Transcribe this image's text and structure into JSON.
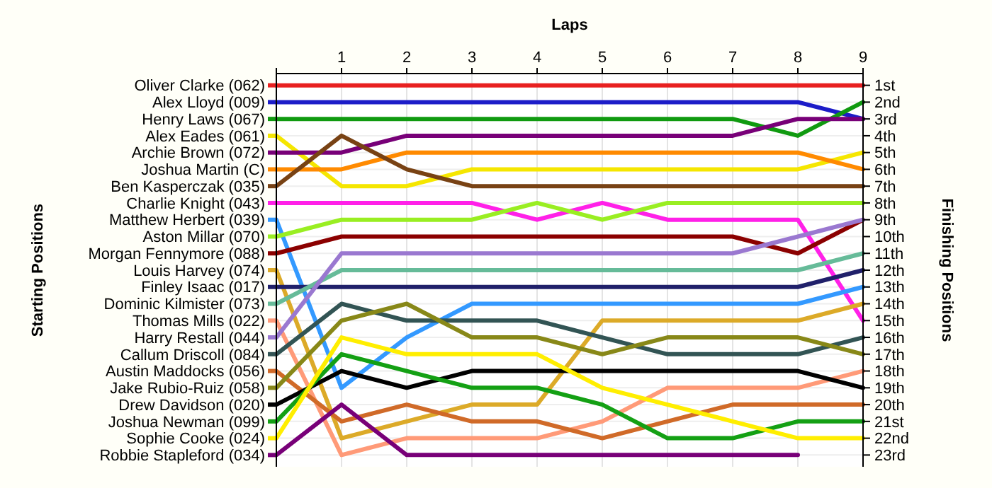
{
  "chart_data": {
    "type": "line",
    "xlabel": "Laps",
    "ylabel": "Finishing Positions",
    "x": [
      0,
      1,
      2,
      3,
      4,
      5,
      6,
      7,
      8,
      9
    ],
    "xlim": [
      0,
      9
    ],
    "xticks": [
      {
        "value": 0,
        "label": null
      },
      1,
      2,
      3,
      4,
      5,
      6,
      7,
      8,
      9
    ],
    "ylim": [
      23.7,
      0.3
    ],
    "yticks": [
      {
        "value": 1,
        "label": "1st"
      },
      {
        "value": 2,
        "label": "2nd"
      },
      {
        "value": 3,
        "label": "3rd"
      },
      {
        "value": 4,
        "label": "4th"
      },
      {
        "value": 5,
        "label": "5th"
      },
      {
        "value": 6,
        "label": "6th"
      },
      {
        "value": 7,
        "label": "7th"
      },
      {
        "value": 8,
        "label": "8th"
      },
      {
        "value": 9,
        "label": "9th"
      },
      {
        "value": 10,
        "label": "10th"
      },
      {
        "value": 11,
        "label": "11th"
      },
      {
        "value": 12,
        "label": "12th"
      },
      {
        "value": 13,
        "label": "13th"
      },
      {
        "value": 14,
        "label": "14th"
      },
      {
        "value": 15,
        "label": "15th"
      },
      {
        "value": 16,
        "label": "16th"
      },
      {
        "value": 17,
        "label": "17th"
      },
      {
        "value": 18,
        "label": "18th"
      },
      {
        "value": 19,
        "label": "19th"
      },
      {
        "value": 20,
        "label": "20th"
      },
      {
        "value": 21,
        "label": "21st"
      },
      {
        "value": 22,
        "label": "22nd"
      },
      {
        "value": 23,
        "label": "23rd"
      }
    ],
    "annotations": [
      "Starting Positions"
    ],
    "grid": true,
    "marker": "none",
    "line_style": "solid",
    "legend": "left",
    "series": [
      {
        "name": "Oliver Clarke (062)",
        "color": "#e82020",
        "values": [
          1,
          1,
          1,
          1,
          1,
          1,
          1,
          1,
          1,
          1
        ]
      },
      {
        "name": "Alex Lloyd (009)",
        "color": "#1c1cc8",
        "values": [
          2,
          2,
          2,
          2,
          2,
          2,
          2,
          2,
          2,
          3
        ]
      },
      {
        "name": "Henry Laws (067)",
        "color": "#109a10",
        "values": [
          3,
          3,
          3,
          3,
          3,
          3,
          3,
          3,
          4,
          2
        ]
      },
      {
        "name": "Alex Eades (061)",
        "color": "#f5e600",
        "values": [
          4,
          7,
          7,
          6,
          6,
          6,
          6,
          6,
          6,
          5
        ]
      },
      {
        "name": "Archie Brown (072)",
        "color": "#780078",
        "values": [
          5,
          5,
          4,
          4,
          4,
          4,
          4,
          4,
          3,
          3
        ]
      },
      {
        "name": "Joshua Martin (C)",
        "color": "#ff8a00",
        "values": [
          6,
          6,
          5,
          5,
          5,
          5,
          5,
          5,
          5,
          6
        ]
      },
      {
        "name": "Ben Kasperczak (035)",
        "color": "#784214",
        "values": [
          7,
          4,
          6,
          7,
          7,
          7,
          7,
          7,
          7,
          7
        ]
      },
      {
        "name": "Charlie Knight (043)",
        "color": "#ff20e8",
        "values": [
          8,
          8,
          8,
          8,
          9,
          8,
          9,
          9,
          9,
          15
        ]
      },
      {
        "name": "Matthew Herbert (039)",
        "color": "#3399ff",
        "values": [
          9,
          19,
          16,
          14,
          14,
          14,
          14,
          14,
          14,
          13
        ]
      },
      {
        "name": "Aston Millar (070)",
        "color": "#99ee22",
        "values": [
          10,
          9,
          9,
          9,
          8,
          9,
          8,
          8,
          8,
          8
        ]
      },
      {
        "name": "Morgan Fennymore (088)",
        "color": "#8b0000",
        "values": [
          11,
          10,
          10,
          10,
          10,
          10,
          10,
          10,
          11,
          9
        ]
      },
      {
        "name": "Louis Harvey (074)",
        "color": "#dcaa28",
        "values": [
          12,
          22,
          21,
          20,
          20,
          15,
          15,
          15,
          15,
          14
        ]
      },
      {
        "name": "Finley Isaac (017)",
        "color": "#20206a",
        "values": [
          13,
          13,
          13,
          13,
          13,
          13,
          13,
          13,
          13,
          12
        ]
      },
      {
        "name": "Dominic Kilmister (073)",
        "color": "#66bb99",
        "values": [
          14,
          12,
          12,
          12,
          12,
          12,
          12,
          12,
          12,
          11
        ]
      },
      {
        "name": "Thomas Mills (022)",
        "color": "#ff9a78",
        "values": [
          15,
          23,
          22,
          22,
          22,
          21,
          19,
          19,
          19,
          18
        ]
      },
      {
        "name": "Harry Restall (044)",
        "color": "#9a78d0",
        "values": [
          16,
          11,
          11,
          11,
          11,
          11,
          11,
          11,
          10,
          9
        ]
      },
      {
        "name": "Callum Driscoll (084)",
        "color": "#325454",
        "values": [
          17,
          14,
          15,
          15,
          15,
          16,
          17,
          17,
          17,
          16
        ]
      },
      {
        "name": "Austin Maddocks (056)",
        "color": "#d06a28",
        "values": [
          18,
          21,
          20,
          21,
          21,
          22,
          21,
          20,
          20,
          20
        ]
      },
      {
        "name": "Jake Rubio-Ruiz (058)",
        "color": "#888818",
        "values": [
          19,
          15,
          14,
          16,
          16,
          17,
          16,
          16,
          16,
          17
        ]
      },
      {
        "name": "Drew Davidson (020)",
        "color": "#000000",
        "values": [
          20,
          18,
          19,
          18,
          18,
          18,
          18,
          18,
          18,
          19
        ]
      },
      {
        "name": "Joshua Newman (099)",
        "color": "#14a014",
        "values": [
          21,
          17,
          18,
          19,
          19,
          20,
          22,
          22,
          21,
          21
        ]
      },
      {
        "name": "Sophie Cooke (024)",
        "color": "#ffee00",
        "values": [
          22,
          16,
          17,
          17,
          17,
          19,
          20,
          21,
          22,
          22
        ]
      },
      {
        "name": "Robbie Stapleford (034)",
        "color": "#780078",
        "values": [
          23,
          20,
          23,
          23,
          23,
          23,
          23,
          23,
          23,
          null
        ]
      }
    ]
  }
}
